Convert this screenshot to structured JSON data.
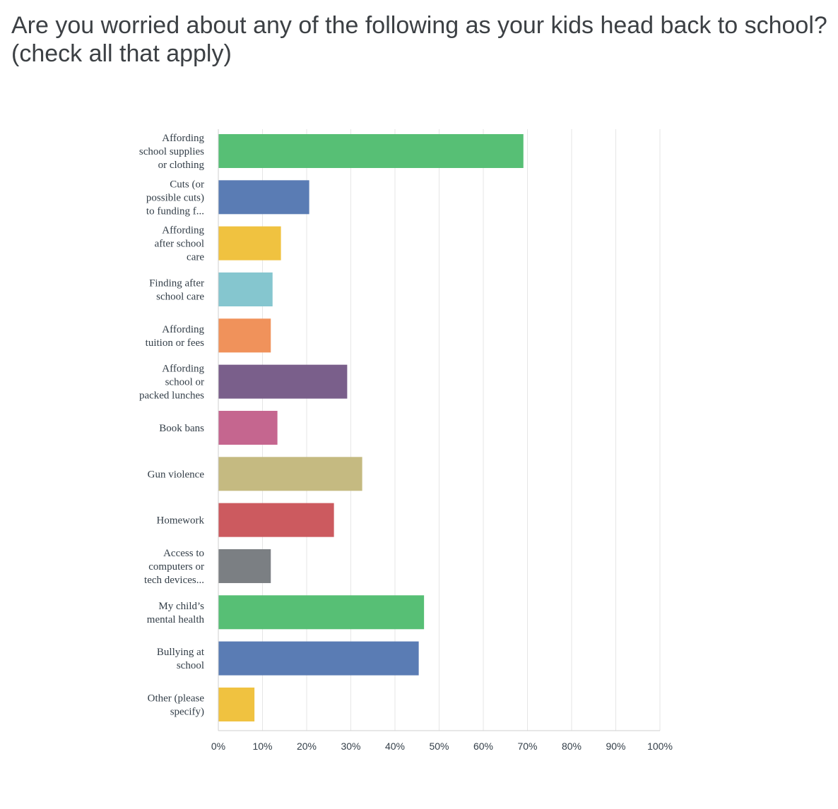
{
  "title_lines": [
    "Are you worried about any of the following as your kids head back to school?",
    "(check all that apply)"
  ],
  "chart_data": {
    "type": "bar",
    "orientation": "horizontal",
    "title": "Are you worried about any of the following as your kids head back to school? (check all that apply)",
    "categories": [
      "Affording school supplies or clothing",
      "Cuts (or possible cuts) to funding f...",
      "Affording after school care",
      "Finding after school care",
      "Affording tuition or fees",
      "Affording school or packed lunches",
      "Book bans",
      "Gun violence",
      "Homework",
      "Access to computers or tech devices...",
      "My child’s mental health",
      "Bullying at school",
      "Other (please specify)"
    ],
    "category_label_lines": [
      [
        "Affording",
        "school supplies",
        "or clothing"
      ],
      [
        "Cuts (or",
        "possible cuts)",
        "to funding f..."
      ],
      [
        "Affording",
        "after school",
        "care"
      ],
      [
        "Finding after",
        "school care"
      ],
      [
        "Affording",
        "tuition or fees"
      ],
      [
        "Affording",
        "school or",
        "packed lunches"
      ],
      [
        "Book bans"
      ],
      [
        "Gun violence"
      ],
      [
        "Homework"
      ],
      [
        "Access to",
        "computers or",
        "tech devices..."
      ],
      [
        "My child’s",
        "mental health"
      ],
      [
        "Bullying at",
        "school"
      ],
      [
        "Other (please",
        "specify)"
      ]
    ],
    "values": [
      69.0,
      20.5,
      14.1,
      12.2,
      11.8,
      29.1,
      13.3,
      32.5,
      26.1,
      11.8,
      46.5,
      45.3,
      8.1
    ],
    "colors": [
      "#57bf75",
      "#5a7cb4",
      "#f0c240",
      "#85c6cf",
      "#f0925b",
      "#7a5f8b",
      "#c5668f",
      "#c5ba81",
      "#cc5a5f",
      "#7b7f83",
      "#57bf75",
      "#5a7cb4",
      "#f0c240"
    ],
    "xlim": [
      0,
      100
    ],
    "x_ticks": [
      "0%",
      "10%",
      "20%",
      "30%",
      "40%",
      "50%",
      "60%",
      "70%",
      "80%",
      "90%",
      "100%"
    ],
    "grid": true,
    "xlabel": "",
    "ylabel": ""
  }
}
